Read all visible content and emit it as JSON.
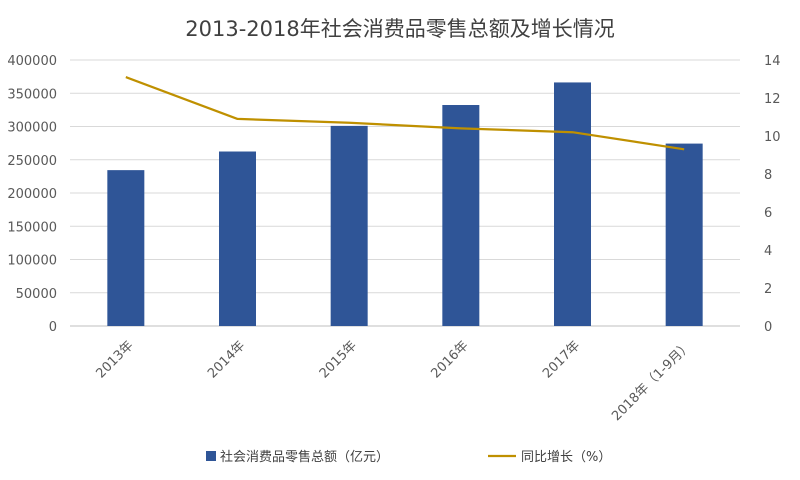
{
  "chart_data": {
    "type": "bar",
    "title": "2013-2018年社会消费品零售总额及增长情况",
    "categories": [
      "2013年",
      "2014年",
      "2015年",
      "2016年",
      "2017年",
      "2018年（1-9月）"
    ],
    "series": [
      {
        "name": "社会消费品零售总额（亿元）",
        "type": "bar",
        "axis": "left",
        "color": "#2F5597",
        "values": [
          234380,
          262394,
          300931,
          332316,
          366262,
          274299
        ]
      },
      {
        "name": "同比增长（%）",
        "type": "line",
        "axis": "right",
        "color": "#BF9000",
        "values": [
          13.1,
          10.9,
          10.7,
          10.4,
          10.2,
          9.3
        ]
      }
    ],
    "y_left": {
      "min": 0,
      "max": 400000,
      "step": 50000
    },
    "y_right": {
      "min": 0,
      "max": 14,
      "step": 2
    },
    "grid": true,
    "legend": "bottom"
  }
}
